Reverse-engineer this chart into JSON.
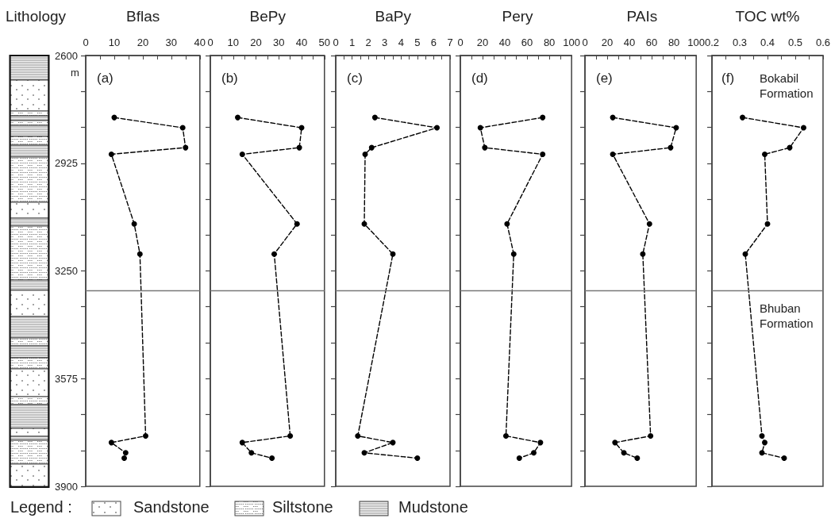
{
  "chart_data": [
    {
      "type": "other",
      "title": "Lithology",
      "annotations": [
        "Legend :",
        "Sandstone",
        "Siltstone",
        "Mudstone"
      ]
    },
    {
      "type": "line",
      "title": "Bflas",
      "ylabel": "m",
      "annotations": [
        "(a)"
      ],
      "color": "#000000",
      "marker": "circle",
      "line_style": "dashed",
      "x": [
        10,
        34,
        35,
        9,
        17,
        19,
        21,
        9,
        14,
        13.5
      ],
      "values": [
        2787,
        2818,
        2878,
        2898,
        3108,
        3199,
        3748,
        3768,
        3799,
        3815
      ],
      "xlim": [
        0,
        40
      ],
      "xticks": [
        0,
        {
          "value": 5,
          "label": null
        },
        10,
        {
          "value": 15,
          "label": null
        },
        20,
        {
          "value": 25,
          "label": null
        },
        30,
        {
          "value": 35,
          "label": null
        },
        40
      ],
      "ylim": [
        3900,
        2600
      ],
      "yticks": [
        2600,
        {
          "value": 2708.33,
          "label": null
        },
        {
          "value": 2816.67,
          "label": null
        },
        2925,
        {
          "value": 3033.33,
          "label": null
        },
        {
          "value": 3141.67,
          "label": null
        },
        3250,
        {
          "value": 3358.33,
          "label": null
        },
        {
          "value": 3466.67,
          "label": null
        },
        3575,
        {
          "value": 3683.33,
          "label": null
        },
        {
          "value": 3791.67,
          "label": null
        },
        3900
      ],
      "ref_lines": [
        {
          "axis": "y",
          "value": 3310
        }
      ]
    },
    {
      "type": "line",
      "title": "BePy",
      "annotations": [
        "(b)"
      ],
      "color": "#000000",
      "marker": "circle",
      "line_style": "dashed",
      "tick_labels": "x",
      "x": [
        12,
        40,
        39,
        14,
        38,
        28,
        35,
        14,
        18,
        27
      ],
      "values": [
        2787,
        2818,
        2878,
        2898,
        3108,
        3199,
        3748,
        3768,
        3799,
        3815
      ],
      "xlim": [
        0,
        50
      ],
      "xticks": [
        0,
        {
          "value": 5,
          "label": null
        },
        10,
        {
          "value": 15,
          "label": null
        },
        20,
        {
          "value": 25,
          "label": null
        },
        30,
        {
          "value": 35,
          "label": null
        },
        40,
        {
          "value": 45,
          "label": null
        },
        50
      ],
      "ylim": [
        3900,
        2600
      ],
      "yticks": [
        2600,
        {
          "value": 2708.33,
          "label": null
        },
        {
          "value": 2816.67,
          "label": null
        },
        2925,
        {
          "value": 3033.33,
          "label": null
        },
        {
          "value": 3141.67,
          "label": null
        },
        3250,
        {
          "value": 3358.33,
          "label": null
        },
        {
          "value": 3466.67,
          "label": null
        },
        3575,
        {
          "value": 3683.33,
          "label": null
        },
        {
          "value": 3791.67,
          "label": null
        },
        3900
      ],
      "ref_lines": [
        {
          "axis": "y",
          "value": 3310
        }
      ]
    },
    {
      "type": "line",
      "title": "BaPy",
      "annotations": [
        "(c)"
      ],
      "color": "#000000",
      "marker": "circle",
      "line_style": "dashed",
      "tick_labels": "x",
      "x": [
        2.4,
        6.2,
        2.2,
        1.8,
        1.75,
        3.5,
        1.35,
        3.5,
        1.75,
        5.0
      ],
      "values": [
        2787,
        2818,
        2878,
        2898,
        3108,
        3199,
        3748,
        3768,
        3799,
        3815
      ],
      "xlim": [
        0,
        7
      ],
      "xticks": [
        0,
        {
          "value": 0.5,
          "label": null
        },
        1,
        {
          "value": 1.5,
          "label": null
        },
        2,
        {
          "value": 2.5,
          "label": null
        },
        3,
        {
          "value": 3.5,
          "label": null
        },
        4,
        {
          "value": 4.5,
          "label": null
        },
        5,
        {
          "value": 5.5,
          "label": null
        },
        6,
        {
          "value": 6.5,
          "label": null
        },
        7
      ],
      "ylim": [
        3900,
        2600
      ],
      "yticks": [
        2600,
        {
          "value": 2708.33,
          "label": null
        },
        {
          "value": 2816.67,
          "label": null
        },
        2925,
        {
          "value": 3033.33,
          "label": null
        },
        {
          "value": 3141.67,
          "label": null
        },
        3250,
        {
          "value": 3358.33,
          "label": null
        },
        {
          "value": 3466.67,
          "label": null
        },
        3575,
        {
          "value": 3683.33,
          "label": null
        },
        {
          "value": 3791.67,
          "label": null
        },
        3900
      ],
      "ref_lines": [
        {
          "axis": "y",
          "value": 3310
        }
      ]
    },
    {
      "type": "line",
      "title": "Pery",
      "annotations": [
        "(d)"
      ],
      "color": "#000000",
      "marker": "circle",
      "line_style": "dashed",
      "tick_labels": "x",
      "x": [
        74,
        18,
        22,
        74,
        42,
        48,
        41,
        72,
        66,
        53
      ],
      "values": [
        2787,
        2818,
        2878,
        2898,
        3108,
        3199,
        3748,
        3768,
        3799,
        3815
      ],
      "xlim": [
        0,
        100
      ],
      "xticks": [
        0,
        {
          "value": 10,
          "label": null
        },
        20,
        {
          "value": 30,
          "label": null
        },
        40,
        {
          "value": 50,
          "label": null
        },
        60,
        {
          "value": 70,
          "label": null
        },
        80,
        {
          "value": 90,
          "label": null
        },
        100
      ],
      "ylim": [
        3900,
        2600
      ],
      "yticks": [
        2600,
        {
          "value": 2708.33,
          "label": null
        },
        {
          "value": 2816.67,
          "label": null
        },
        2925,
        {
          "value": 3033.33,
          "label": null
        },
        {
          "value": 3141.67,
          "label": null
        },
        3250,
        {
          "value": 3358.33,
          "label": null
        },
        {
          "value": 3466.67,
          "label": null
        },
        3575,
        {
          "value": 3683.33,
          "label": null
        },
        {
          "value": 3791.67,
          "label": null
        },
        3900
      ],
      "ref_lines": [
        {
          "axis": "y",
          "value": 3310
        }
      ]
    },
    {
      "type": "line",
      "title": "PAIs",
      "annotations": [
        "(e)"
      ],
      "color": "#000000",
      "marker": "circle",
      "line_style": "dashed",
      "tick_labels": "x",
      "x": [
        25,
        82,
        77,
        25,
        58,
        52,
        59,
        27,
        35,
        47
      ],
      "values": [
        2787,
        2818,
        2878,
        2898,
        3108,
        3199,
        3748,
        3768,
        3799,
        3815
      ],
      "xlim": [
        0,
        100
      ],
      "xticks": [
        0,
        {
          "value": 10,
          "label": null
        },
        20,
        {
          "value": 30,
          "label": null
        },
        40,
        {
          "value": 50,
          "label": null
        },
        60,
        {
          "value": 70,
          "label": null
        },
        80,
        {
          "value": 90,
          "label": null
        },
        100
      ],
      "ylim": [
        3900,
        2600
      ],
      "yticks": [
        2600,
        {
          "value": 2708.33,
          "label": null
        },
        {
          "value": 2816.67,
          "label": null
        },
        2925,
        {
          "value": 3033.33,
          "label": null
        },
        {
          "value": 3141.67,
          "label": null
        },
        3250,
        {
          "value": 3358.33,
          "label": null
        },
        {
          "value": 3466.67,
          "label": null
        },
        3575,
        {
          "value": 3683.33,
          "label": null
        },
        {
          "value": 3791.67,
          "label": null
        },
        3900
      ],
      "ref_lines": [
        {
          "axis": "y",
          "value": 3310
        }
      ]
    },
    {
      "type": "line",
      "title": "TOC wt%",
      "annotations": [
        "(f)",
        "Bokabil Formation",
        "Bhuban Formation"
      ],
      "color": "#000000",
      "marker": "circle",
      "line_style": "dashed",
      "tick_labels": "x",
      "x": [
        0.31,
        0.53,
        0.48,
        0.39,
        0.4,
        0.32,
        0.38,
        0.39,
        0.38,
        0.46
      ],
      "values": [
        2787,
        2818,
        2878,
        2898,
        3108,
        3199,
        3748,
        3768,
        3799,
        3815
      ],
      "xlim": [
        0.2,
        0.6
      ],
      "xticks": [
        0.2,
        {
          "value": 0.25,
          "label": null
        },
        0.3,
        {
          "value": 0.35,
          "label": null
        },
        0.4,
        {
          "value": 0.45,
          "label": null
        },
        0.5,
        {
          "value": 0.55,
          "label": null
        },
        0.6
      ],
      "ylim": [
        3900,
        2600
      ],
      "yticks": [
        2600,
        {
          "value": 2708.33,
          "label": null
        },
        {
          "value": 2816.67,
          "label": null
        },
        2925,
        {
          "value": 3033.33,
          "label": null
        },
        {
          "value": 3141.67,
          "label": null
        },
        3250,
        {
          "value": 3358.33,
          "label": null
        },
        {
          "value": 3466.67,
          "label": null
        },
        3575,
        {
          "value": 3683.33,
          "label": null
        },
        {
          "value": 3791.67,
          "label": null
        },
        3900
      ],
      "ref_lines": [
        {
          "axis": "y",
          "value": 3310
        }
      ]
    }
  ]
}
